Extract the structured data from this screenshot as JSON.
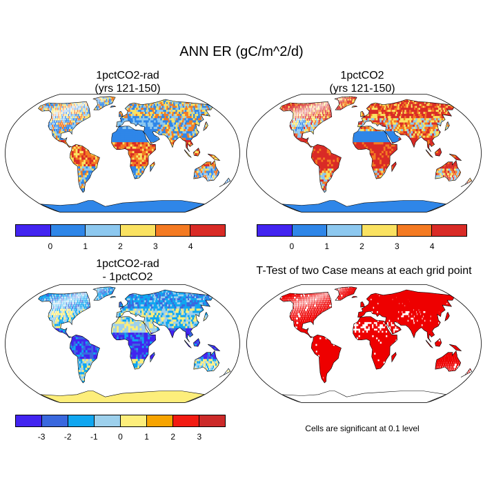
{
  "title": "ANN ER (gC/m^2/d)",
  "panels": {
    "p1": {
      "title_line1": "1pctCO2-rad",
      "title_line2": "(yrs 121-150)"
    },
    "p2": {
      "title_line1": "1pctCO2",
      "title_line2": "(yrs 121-150)"
    },
    "p3": {
      "title_line1": "1pctCO2-rad",
      "title_line2": "- 1pctCO2"
    },
    "p4": {
      "title": "T-Test of two Case means at each grid point",
      "note": "Cells are significant at 0.1 level"
    }
  },
  "colorbar_abs": {
    "colors": [
      "#4224f0",
      "#2f86e8",
      "#8dc8ef",
      "#fae261",
      "#f47a22",
      "#d92b26"
    ],
    "labels": [
      "0",
      "1",
      "2",
      "3",
      "4"
    ]
  },
  "colorbar_diff": {
    "colors": [
      "#4224f0",
      "#3a68de",
      "#10a6f0",
      "#9dd0ec",
      "#fdee7b",
      "#f7a400",
      "#f21b12",
      "#cc2a29"
    ],
    "labels": [
      "-3",
      "-2",
      "-1",
      "0",
      "1",
      "2",
      "3"
    ]
  },
  "ttest": {
    "color": "#ee0000"
  }
}
